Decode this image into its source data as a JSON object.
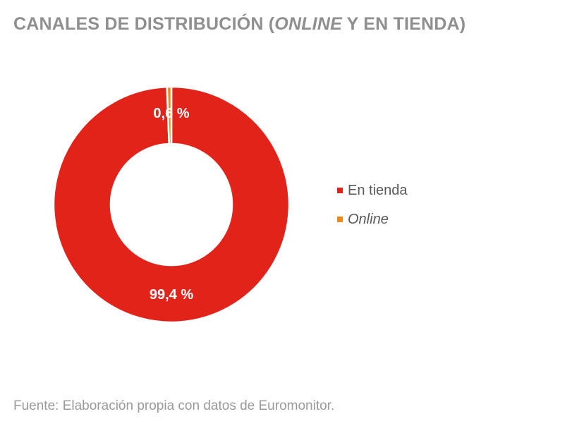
{
  "title": {
    "part1": "CANALES DE DISTRIBUCIÓN (",
    "italic": "ONLINE",
    "part2": " Y EN TIENDA)"
  },
  "chart_data": {
    "type": "pie",
    "variant": "donut",
    "categories": [
      "En tienda",
      "Online"
    ],
    "values": [
      99.4,
      0.6
    ],
    "unit": "%",
    "data_labels": [
      "99,4 %",
      "0,6 %"
    ],
    "colors": [
      "#e2231a",
      "#ee8a1c"
    ],
    "legend_placement": "right"
  },
  "legend": {
    "items": [
      {
        "label": "En tienda",
        "color": "#e2231a",
        "italic": false
      },
      {
        "label": "Online",
        "color": "#ee8a1c",
        "italic": true
      }
    ]
  },
  "source": "Fuente: Elaboración propia con datos de Euromonitor."
}
